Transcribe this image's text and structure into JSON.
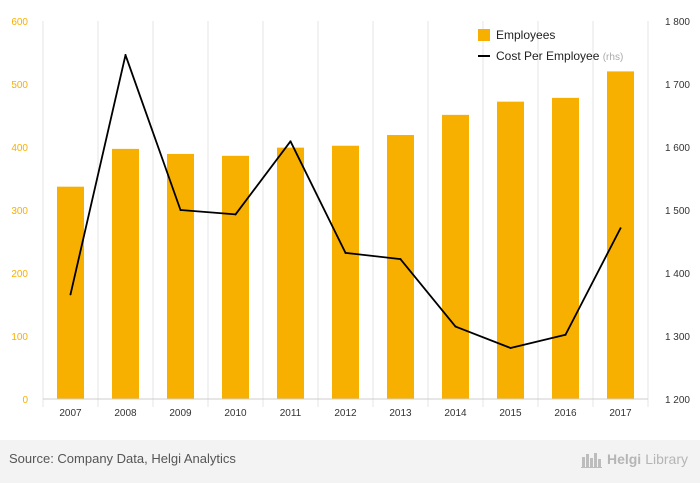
{
  "chart_data": {
    "type": "bar+line",
    "categories": [
      "2007",
      "2008",
      "2009",
      "2010",
      "2011",
      "2012",
      "2013",
      "2014",
      "2015",
      "2016",
      "2017"
    ],
    "series": [
      {
        "name": "Employees",
        "type": "bar",
        "axis": "left",
        "color": "#f7b000",
        "values": [
          337,
          397,
          389,
          386,
          399,
          402,
          419,
          451,
          472,
          478,
          520
        ]
      },
      {
        "name": "Cost Per Employee",
        "type": "line",
        "axis": "right",
        "color": "#000000",
        "values": [
          1366,
          1746,
          1500,
          1493,
          1609,
          1432,
          1422,
          1315,
          1281,
          1302,
          1471
        ]
      }
    ],
    "left_axis": {
      "min": 0,
      "max": 600,
      "ticks": [
        "0",
        "100",
        "200",
        "300",
        "400",
        "500",
        "600"
      ],
      "color": "#f7b000"
    },
    "right_axis": {
      "min": 1200,
      "max": 1800,
      "ticks": [
        "1 200",
        "1 300",
        "1 400",
        "1 500",
        "1 600",
        "1 700",
        "1 800"
      ]
    },
    "legend": {
      "position": "top-right",
      "items": [
        {
          "label": "Employees",
          "suffix": ""
        },
        {
          "label": "Cost Per Employee",
          "suffix": "(rhs)"
        }
      ]
    },
    "grid": "vertical"
  },
  "footer": {
    "source": "Source: Company Data, Helgi Analytics",
    "brand_name": "Helgi",
    "brand_sub": "Library"
  }
}
